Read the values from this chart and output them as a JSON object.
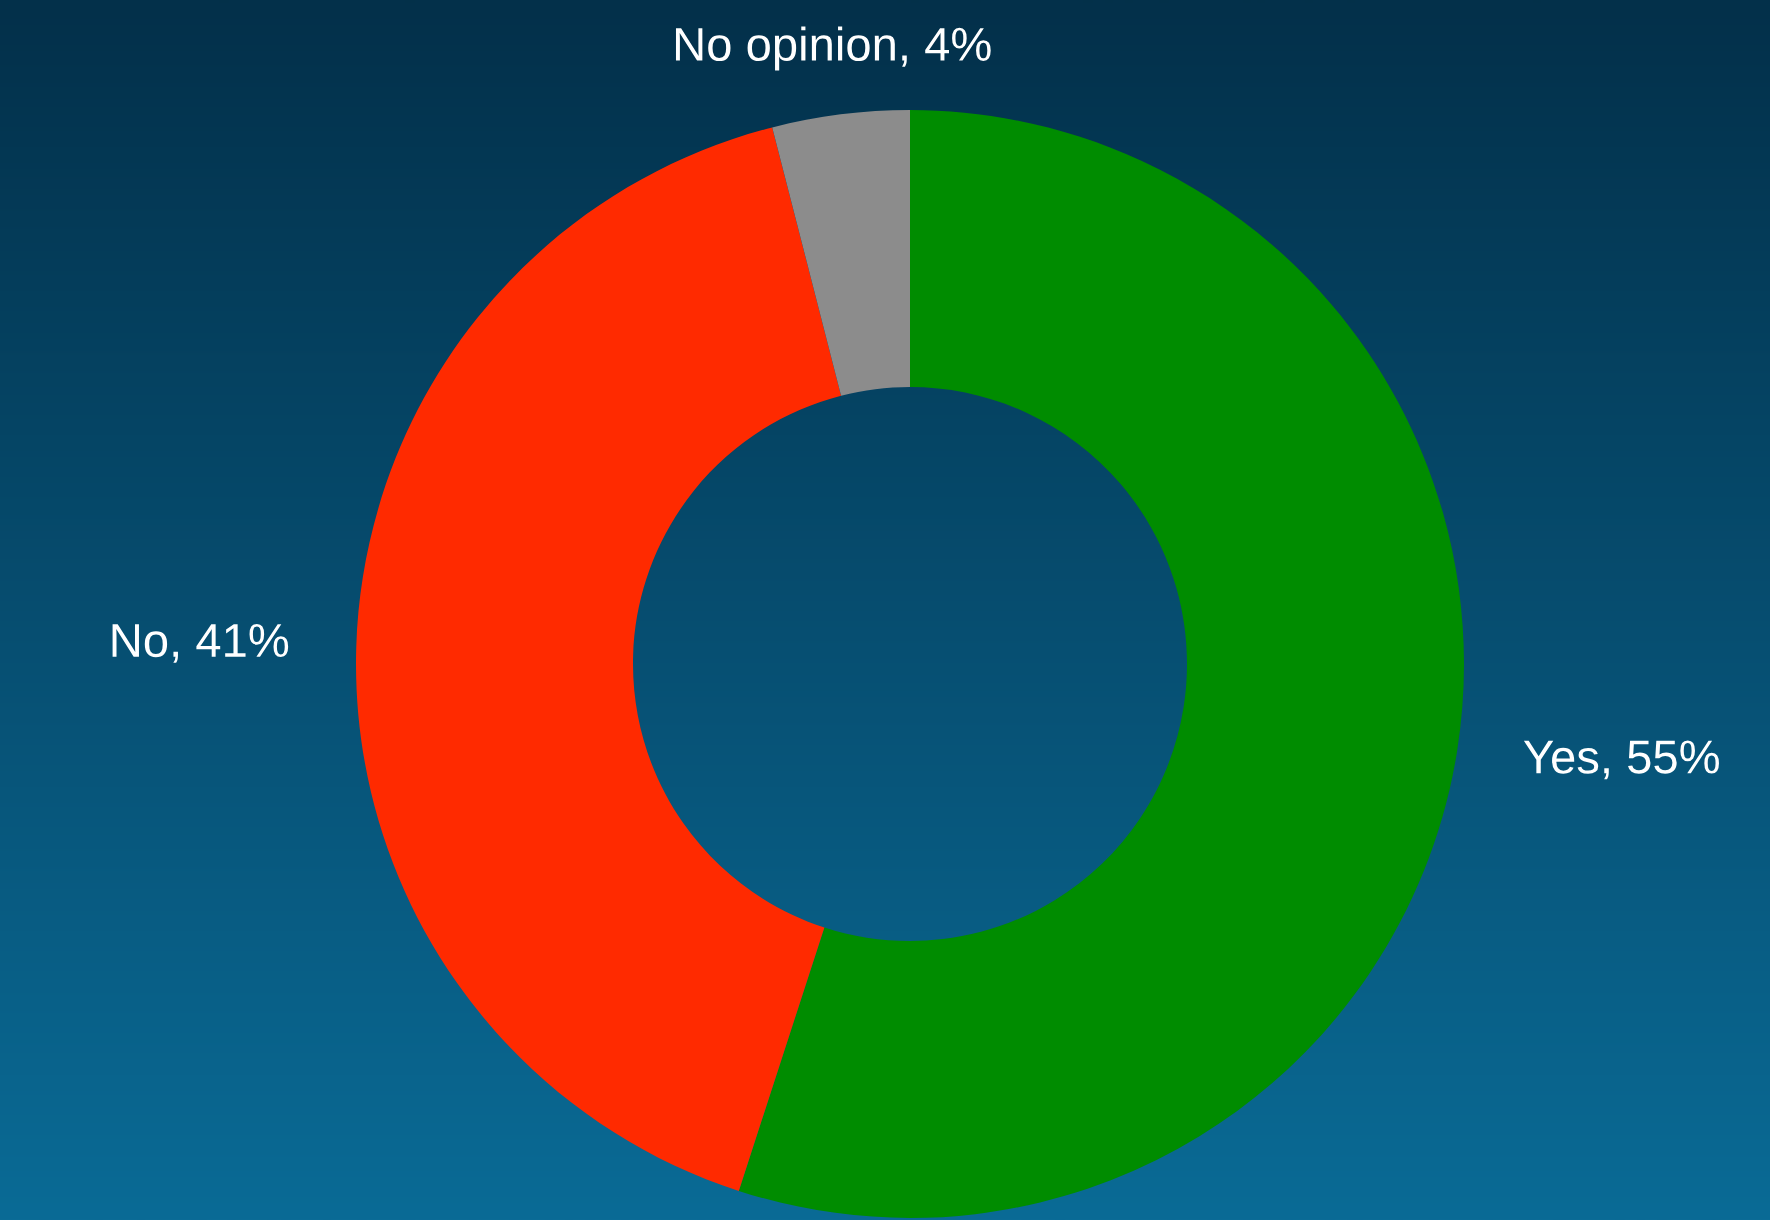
{
  "chart_data": {
    "type": "donut",
    "categories": [
      "Yes",
      "No",
      "No opinion"
    ],
    "values": [
      55,
      41,
      4
    ],
    "value_labels": [
      "55%",
      "41%",
      "4%"
    ],
    "colors": [
      "#008c00",
      "#ff2a00",
      "#8c8c8c"
    ]
  }
}
